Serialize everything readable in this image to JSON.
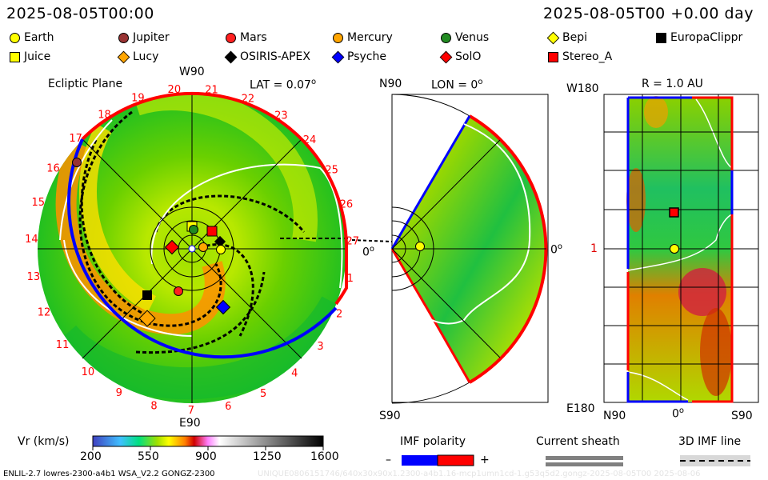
{
  "header": {
    "timestamp_left": "2025-08-05T00:00",
    "timestamp_right": "2025-08-05T00 +0.00 day"
  },
  "legend": [
    {
      "label": "Earth",
      "shape": "circle",
      "color": "#ffff00"
    },
    {
      "label": "Jupiter",
      "shape": "circle",
      "color": "#993333"
    },
    {
      "label": "Mars",
      "shape": "circle",
      "color": "#ff2020"
    },
    {
      "label": "Mercury",
      "shape": "circle",
      "color": "#ffa500"
    },
    {
      "label": "Venus",
      "shape": "circle",
      "color": "#228b22"
    },
    {
      "label": "Bepi",
      "shape": "diamond",
      "color": "#ffff00"
    },
    {
      "label": "EuropaClippr",
      "shape": "square",
      "color": "#000000"
    },
    {
      "label": "Juice",
      "shape": "square",
      "color": "#ffff00"
    },
    {
      "label": "Lucy",
      "shape": "diamond",
      "color": "#ffa500"
    },
    {
      "label": "OSIRIS-APEX",
      "shape": "diamond",
      "color": "#000000"
    },
    {
      "label": "Psyche",
      "shape": "diamond",
      "color": "#0000ff"
    },
    {
      "label": "SolO",
      "shape": "diamond",
      "color": "#ff0000"
    },
    {
      "label": "Stereo_A",
      "shape": "square",
      "color": "#ff0000"
    }
  ],
  "ecliptic": {
    "title": "Ecliptic Plane",
    "top_label": "W90",
    "bottom_label": "E90",
    "right_label": "0",
    "lat_label": "LAT = 0.07",
    "degree": "o",
    "rim_numbers": [
      "1",
      "2",
      "3",
      "4",
      "5",
      "6",
      "7",
      "8",
      "9",
      "10",
      "11",
      "12",
      "13",
      "14",
      "15",
      "16",
      "17",
      "18",
      "19",
      "20",
      "21",
      "22",
      "23",
      "24",
      "25",
      "26",
      "27"
    ]
  },
  "meridional": {
    "top_label": "N90",
    "lon_label": "LON = 0",
    "degree": "o",
    "bottom_label": "S90",
    "right_label": "0"
  },
  "radial": {
    "title": "R = 1.0 AU",
    "top_left": "W180",
    "bottom_left": "E180",
    "mid_left": "1",
    "x_left": "N90",
    "x_mid": "0",
    "x_right": "S90",
    "degree": "o"
  },
  "colorbar": {
    "label": "Vr (km/s)",
    "ticks": [
      "200",
      "550",
      "900",
      "1250",
      "1600"
    ]
  },
  "imf": {
    "label": "IMF polarity",
    "minus": "–",
    "plus": "+",
    "neg_color": "#0000ff",
    "pos_color": "#ff0000"
  },
  "sheath": {
    "label": "Current sheath"
  },
  "imfline": {
    "label": "3D IMF line"
  },
  "footer": {
    "model": "ENLIL-2.7 lowres-2300-a4b1 WSA_V2.2 GONGZ-2300",
    "run_id": "UNIQUE0806151746/640x30x90x1.2300-a4b1.16-mcp1umn1cd-1.g53q5d2.gongz-2025-08-05T00   2025-08-06"
  }
}
